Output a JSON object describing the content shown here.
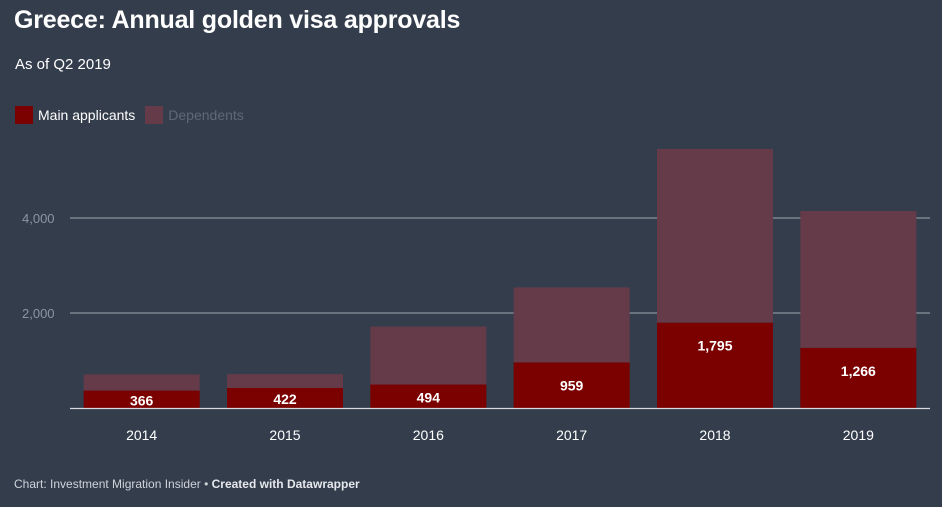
{
  "footer": {
    "source": "Chart: Investment Migration Insider",
    "separator": " • ",
    "credit": "Created with Datawrapper"
  },
  "colors": {
    "background": "#333d4c",
    "main": "#7b0000",
    "dependents": "#653b4a",
    "grid": "#c8ccd2"
  },
  "chart_data": {
    "type": "bar",
    "stacked": true,
    "title": "Greece: Annual golden visa approvals",
    "subtitle": "As of Q2 2019",
    "categories": [
      "2014",
      "2015",
      "2016",
      "2017",
      "2018",
      "2019"
    ],
    "series": [
      {
        "name": "Main applicants",
        "values": [
          366,
          422,
          494,
          959,
          1795,
          1266
        ],
        "labels": [
          "366",
          "422",
          "494",
          "959",
          "1,795",
          "1,266"
        ]
      },
      {
        "name": "Dependents",
        "values": [
          340,
          290,
          1220,
          1580,
          3660,
          2880
        ]
      }
    ],
    "yticks": [
      2000,
      4000
    ],
    "ytick_labels": [
      "2,000",
      "4,000"
    ],
    "ylim": [
      0,
      5600
    ],
    "grid": true,
    "legend": "top-left"
  }
}
